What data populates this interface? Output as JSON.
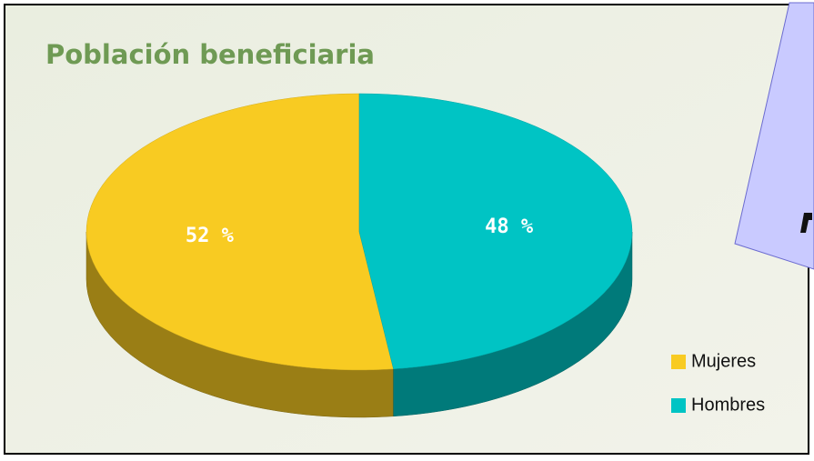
{
  "chart_data": {
    "type": "pie",
    "title": "Población beneficiaria",
    "categories": [
      "Mujeres",
      "Hombres"
    ],
    "values": [
      52,
      48
    ],
    "value_labels": [
      "52 %",
      "48 %"
    ],
    "colors": [
      "#f8cb22",
      "#00c4c4"
    ],
    "legend": "bottom-right"
  }
}
